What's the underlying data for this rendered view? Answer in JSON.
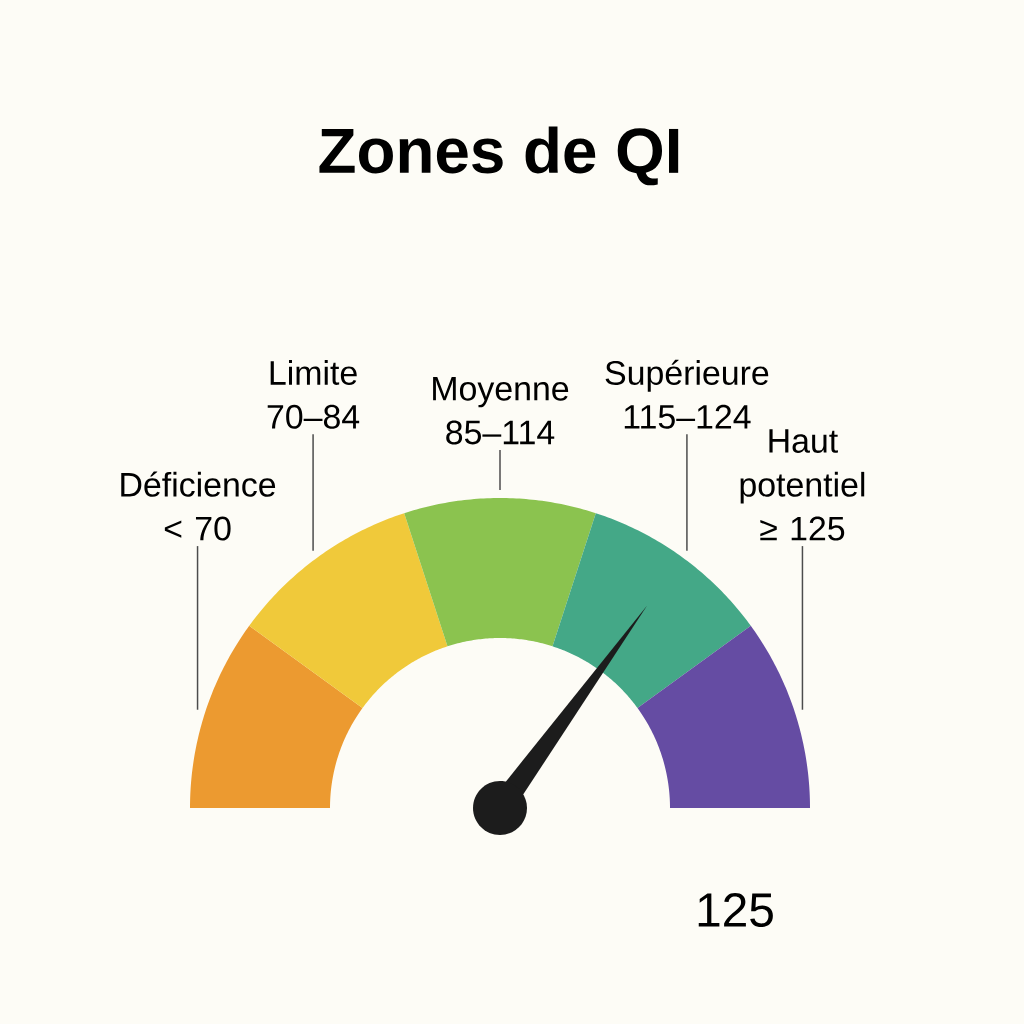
{
  "chart_data": {
    "type": "donut",
    "title": "Zones de QI",
    "categories": [
      "Déficience < 70",
      "Limite 70–84",
      "Moyenne 85–114",
      "Supérieure 115–124",
      "Haut potentiel ≥ 125"
    ],
    "values": [
      20,
      20,
      20,
      20,
      20
    ],
    "colors": [
      "#ec9a30",
      "#f0c93a",
      "#8bc34f",
      "#44a887",
      "#654ca3"
    ],
    "needle": "Supérieure 115–124",
    "annotations": [
      "125"
    ]
  }
}
